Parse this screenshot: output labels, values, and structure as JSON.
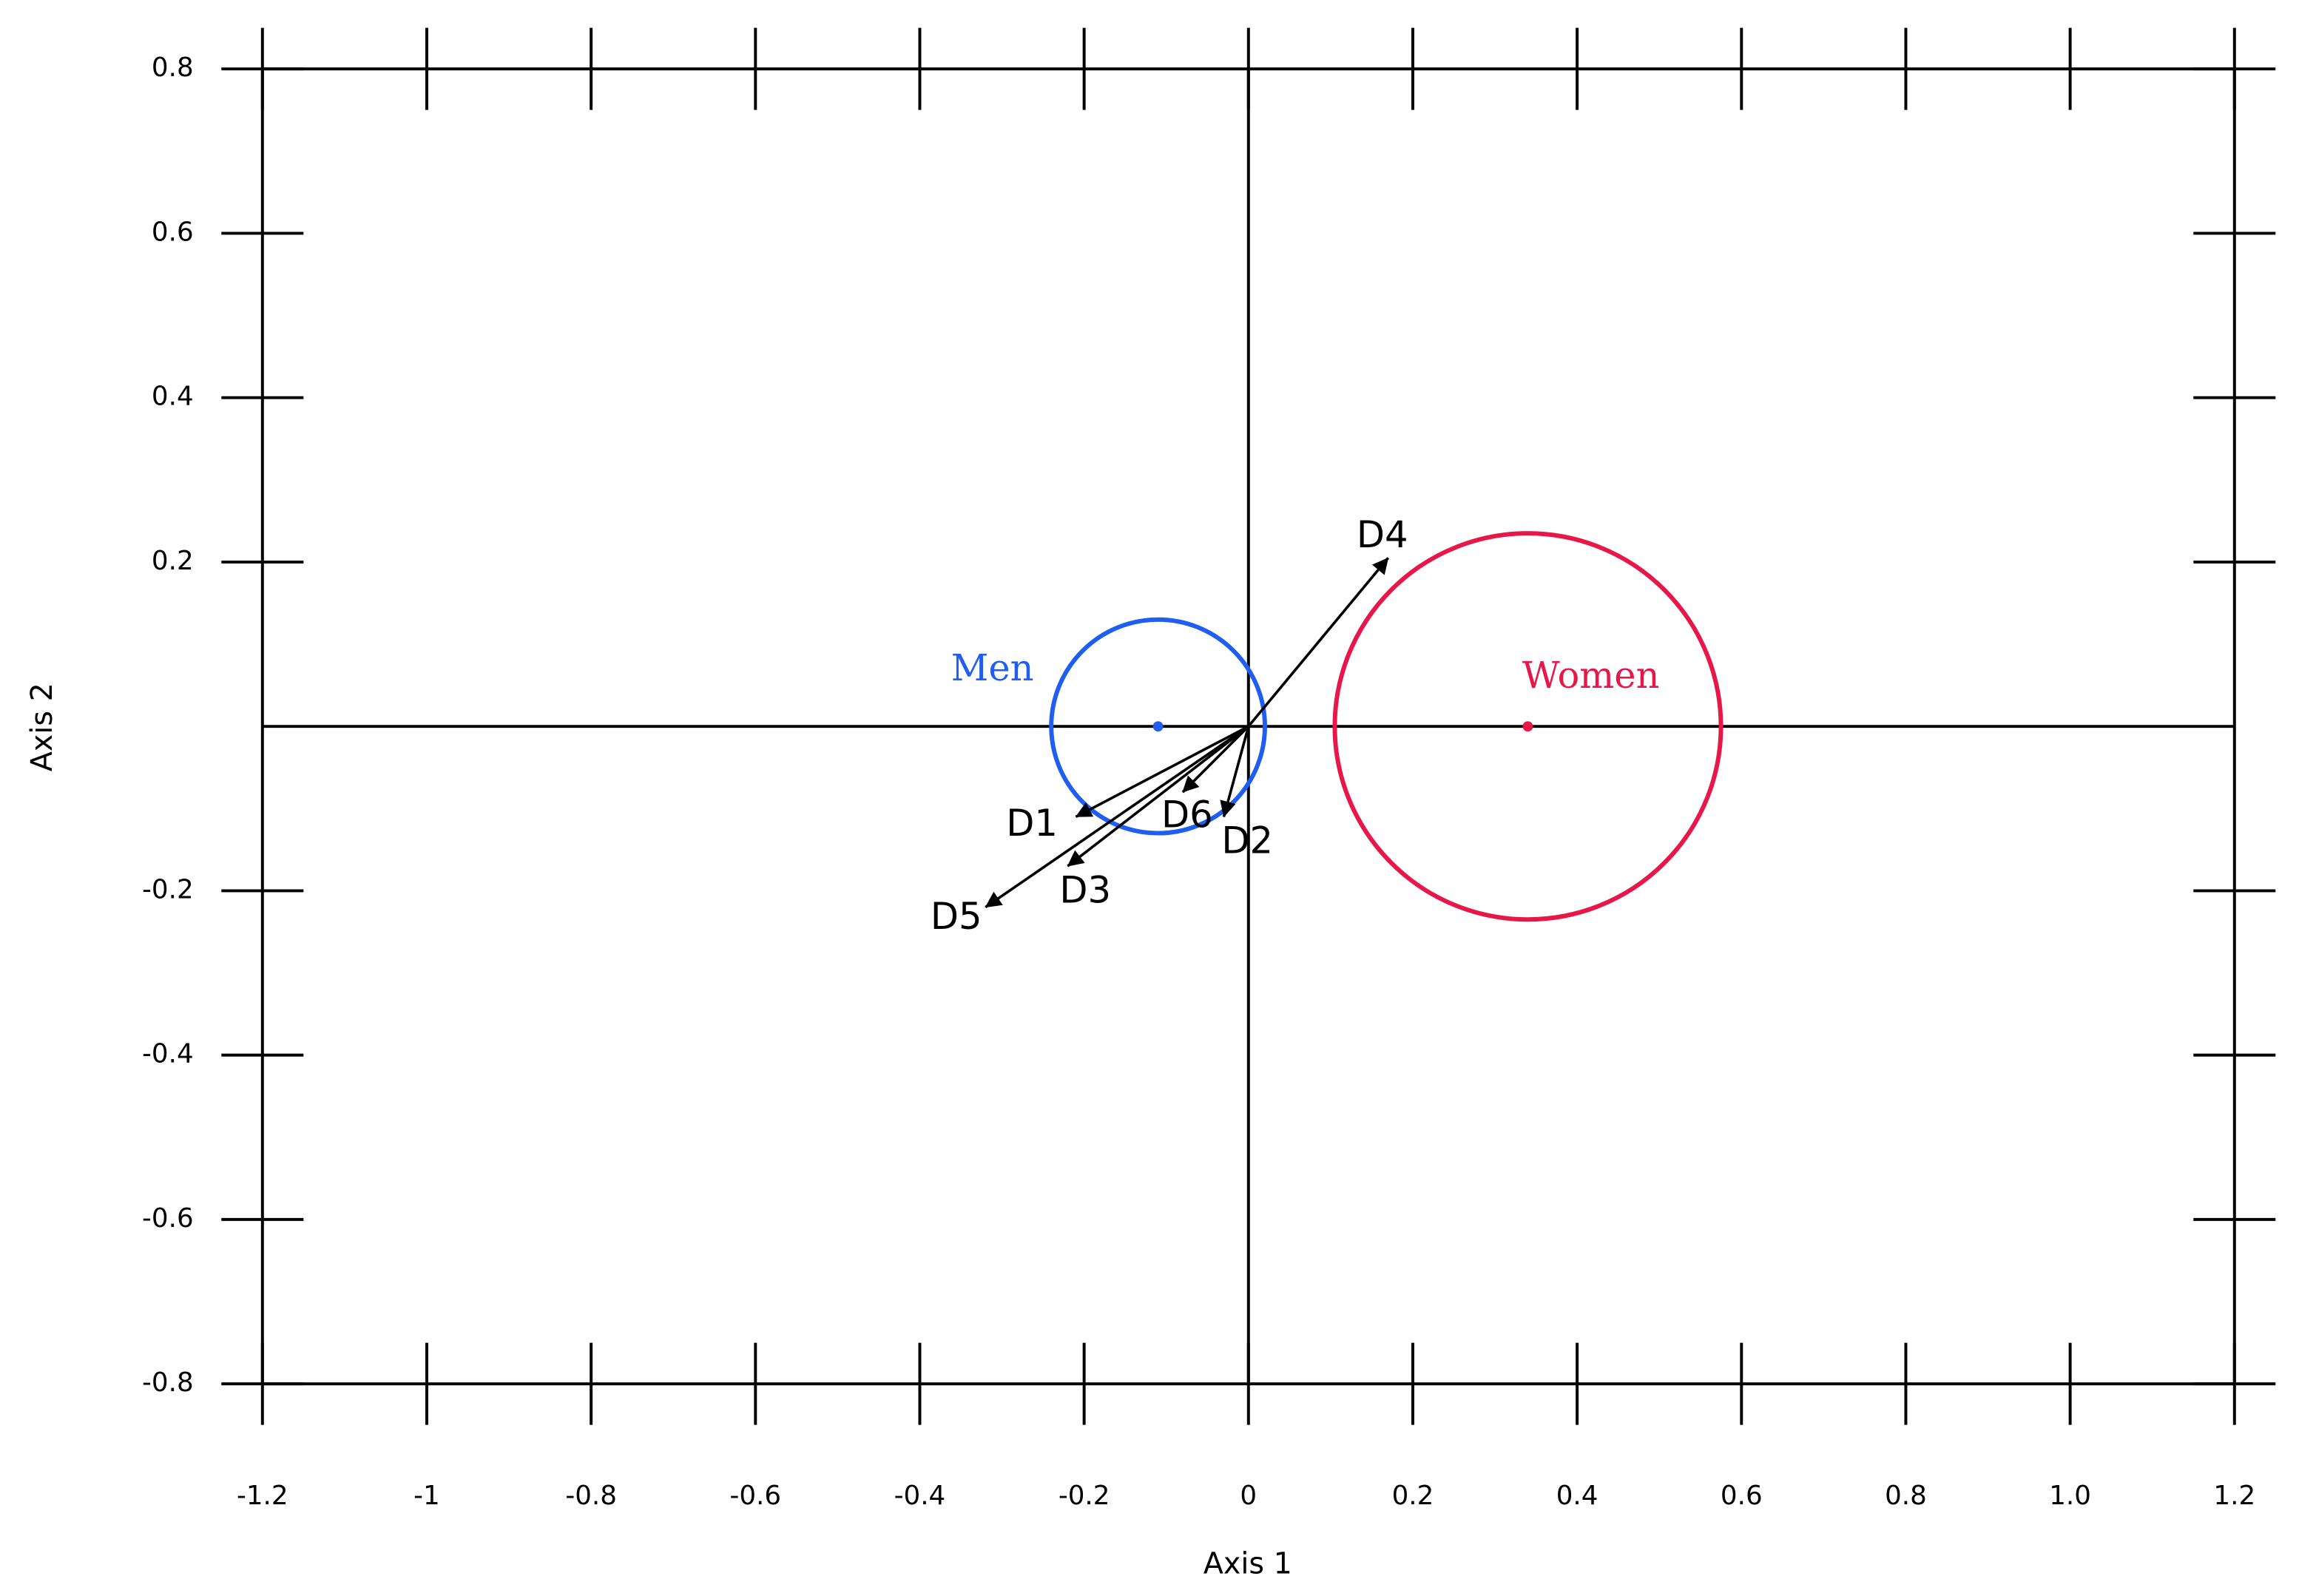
{
  "chart_data": {
    "type": "biplot",
    "x_label": "Axis 1",
    "y_label": "Axis 2",
    "xlim": [
      -1.2,
      1.2
    ],
    "ylim": [
      -0.8,
      0.8
    ],
    "xticks": [
      -1.2,
      -1,
      -0.8,
      -0.6,
      -0.4,
      -0.2,
      0,
      0.2,
      0.4,
      0.6,
      0.8,
      {
        "value": 1,
        "label": "1.0"
      },
      1.2
    ],
    "yticks": [
      -0.8,
      -0.6,
      -0.4,
      -0.2,
      0.2,
      0.4,
      0.6,
      0.8
    ],
    "arrows": {
      "color": "#000000",
      "names": [
        "D1",
        "D2",
        "D3",
        "D4",
        "D5",
        "D6"
      ],
      "x": [
        -0.21,
        -0.03,
        -0.22,
        0.17,
        -0.32,
        -0.08
      ],
      "y": [
        -0.11,
        -0.11,
        -0.17,
        0.205,
        -0.22,
        -0.08
      ]
    },
    "groups": [
      {
        "name": "Men",
        "color": "#1f5ef0",
        "x": -0.11,
        "y": 0,
        "radius": 0.13
      },
      {
        "name": "Women",
        "color": "#e8174a",
        "x": 0.34,
        "y": 0,
        "radius": 0.235
      }
    ]
  }
}
